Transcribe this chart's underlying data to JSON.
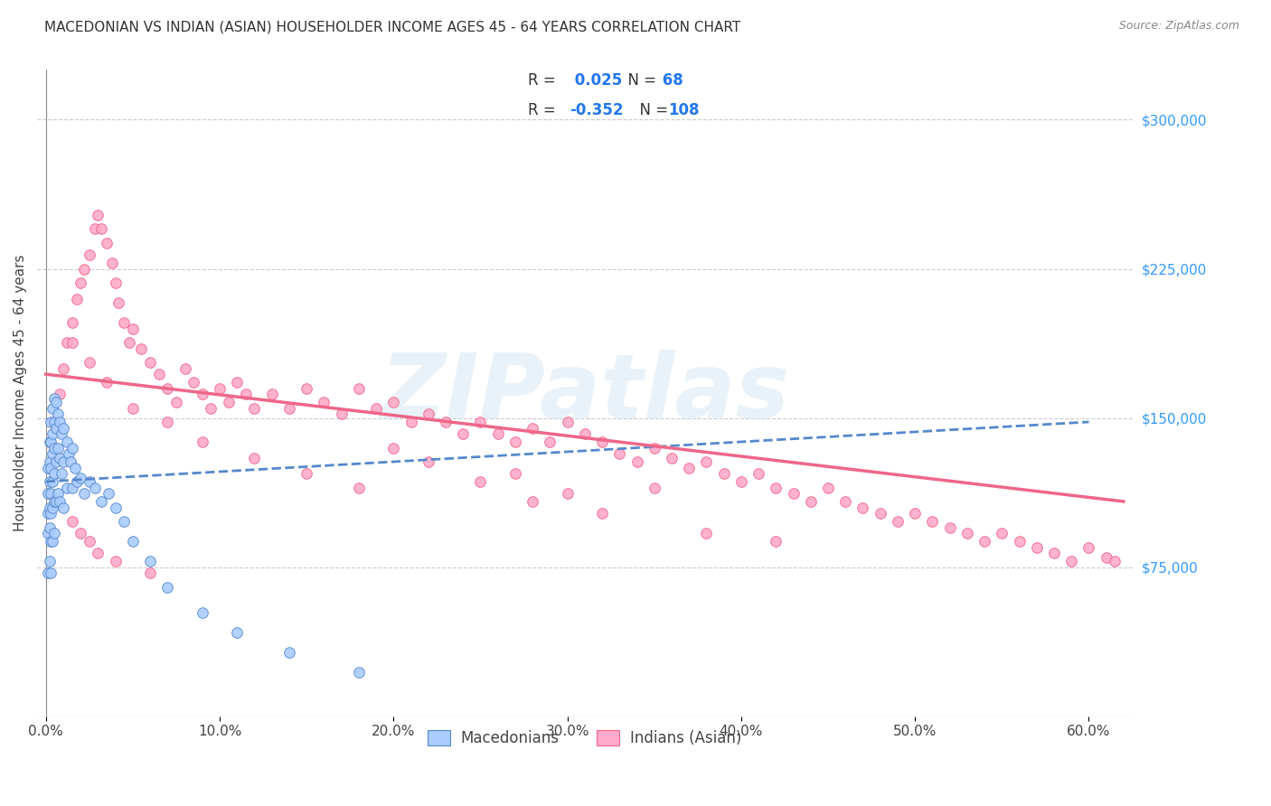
{
  "title": "MACEDONIAN VS INDIAN (ASIAN) HOUSEHOLDER INCOME AGES 45 - 64 YEARS CORRELATION CHART",
  "source": "Source: ZipAtlas.com",
  "ylabel": "Householder Income Ages 45 - 64 years",
  "xlabel_ticks": [
    "0.0%",
    "10.0%",
    "20.0%",
    "30.0%",
    "40.0%",
    "50.0%",
    "60.0%"
  ],
  "xlabel_vals": [
    0.0,
    0.1,
    0.2,
    0.3,
    0.4,
    0.5,
    0.6
  ],
  "ylim": [
    0,
    325000
  ],
  "xlim": [
    -0.005,
    0.625
  ],
  "yticks_right": [
    75000,
    150000,
    225000,
    300000
  ],
  "ytick_labels_right": [
    "$75,000",
    "$150,000",
    "$225,000",
    "$300,000"
  ],
  "mac_R": "0.025",
  "mac_N": "68",
  "ind_R": "-0.352",
  "ind_N": "108",
  "mac_color": "#aaccff",
  "ind_color": "#ffaac8",
  "mac_edge_color": "#5588cc",
  "ind_edge_color": "#ee6688",
  "legend_label_mac": "Macedonians",
  "legend_label_ind": "Indians (Asian)",
  "watermark": "ZIPatlas",
  "grid_color": "#cccccc",
  "background_color": "#ffffff",
  "mac_scatter_x": [
    0.001,
    0.001,
    0.001,
    0.001,
    0.001,
    0.002,
    0.002,
    0.002,
    0.002,
    0.002,
    0.002,
    0.003,
    0.003,
    0.003,
    0.003,
    0.003,
    0.003,
    0.003,
    0.004,
    0.004,
    0.004,
    0.004,
    0.004,
    0.004,
    0.005,
    0.005,
    0.005,
    0.005,
    0.005,
    0.005,
    0.006,
    0.006,
    0.006,
    0.006,
    0.007,
    0.007,
    0.007,
    0.008,
    0.008,
    0.008,
    0.009,
    0.009,
    0.01,
    0.01,
    0.01,
    0.012,
    0.012,
    0.013,
    0.014,
    0.015,
    0.015,
    0.017,
    0.018,
    0.02,
    0.022,
    0.025,
    0.028,
    0.032,
    0.036,
    0.04,
    0.045,
    0.05,
    0.06,
    0.07,
    0.09,
    0.11,
    0.14,
    0.18
  ],
  "mac_scatter_y": [
    125000,
    112000,
    102000,
    92000,
    72000,
    138000,
    128000,
    118000,
    105000,
    95000,
    78000,
    148000,
    138000,
    125000,
    112000,
    102000,
    88000,
    72000,
    155000,
    142000,
    132000,
    118000,
    105000,
    88000,
    160000,
    148000,
    135000,
    122000,
    108000,
    92000,
    158000,
    145000,
    128000,
    108000,
    152000,
    135000,
    112000,
    148000,
    130000,
    108000,
    142000,
    122000,
    145000,
    128000,
    105000,
    138000,
    115000,
    132000,
    128000,
    135000,
    115000,
    125000,
    118000,
    120000,
    112000,
    118000,
    115000,
    108000,
    112000,
    105000,
    98000,
    88000,
    78000,
    65000,
    52000,
    42000,
    32000,
    22000
  ],
  "ind_scatter_x": [
    0.005,
    0.008,
    0.01,
    0.012,
    0.015,
    0.018,
    0.02,
    0.022,
    0.025,
    0.028,
    0.03,
    0.032,
    0.035,
    0.038,
    0.04,
    0.042,
    0.045,
    0.048,
    0.05,
    0.055,
    0.06,
    0.065,
    0.07,
    0.075,
    0.08,
    0.085,
    0.09,
    0.095,
    0.1,
    0.105,
    0.11,
    0.115,
    0.12,
    0.13,
    0.14,
    0.15,
    0.16,
    0.17,
    0.18,
    0.19,
    0.2,
    0.21,
    0.22,
    0.23,
    0.24,
    0.25,
    0.26,
    0.27,
    0.28,
    0.29,
    0.3,
    0.31,
    0.32,
    0.33,
    0.34,
    0.35,
    0.36,
    0.37,
    0.38,
    0.39,
    0.4,
    0.41,
    0.42,
    0.43,
    0.44,
    0.45,
    0.46,
    0.47,
    0.48,
    0.49,
    0.5,
    0.51,
    0.52,
    0.53,
    0.54,
    0.55,
    0.56,
    0.57,
    0.58,
    0.59,
    0.6,
    0.61,
    0.615,
    0.38,
    0.42,
    0.35,
    0.28,
    0.32,
    0.25,
    0.3,
    0.2,
    0.22,
    0.27,
    0.015,
    0.025,
    0.035,
    0.05,
    0.07,
    0.09,
    0.12,
    0.15,
    0.18,
    0.015,
    0.02,
    0.025,
    0.03,
    0.04,
    0.06
  ],
  "ind_scatter_y": [
    148000,
    162000,
    175000,
    188000,
    198000,
    210000,
    218000,
    225000,
    232000,
    245000,
    252000,
    245000,
    238000,
    228000,
    218000,
    208000,
    198000,
    188000,
    195000,
    185000,
    178000,
    172000,
    165000,
    158000,
    175000,
    168000,
    162000,
    155000,
    165000,
    158000,
    168000,
    162000,
    155000,
    162000,
    155000,
    165000,
    158000,
    152000,
    165000,
    155000,
    158000,
    148000,
    152000,
    148000,
    142000,
    148000,
    142000,
    138000,
    145000,
    138000,
    148000,
    142000,
    138000,
    132000,
    128000,
    135000,
    130000,
    125000,
    128000,
    122000,
    118000,
    122000,
    115000,
    112000,
    108000,
    115000,
    108000,
    105000,
    102000,
    98000,
    102000,
    98000,
    95000,
    92000,
    88000,
    92000,
    88000,
    85000,
    82000,
    78000,
    85000,
    80000,
    78000,
    92000,
    88000,
    115000,
    108000,
    102000,
    118000,
    112000,
    135000,
    128000,
    122000,
    188000,
    178000,
    168000,
    155000,
    148000,
    138000,
    130000,
    122000,
    115000,
    98000,
    92000,
    88000,
    82000,
    78000,
    72000
  ]
}
